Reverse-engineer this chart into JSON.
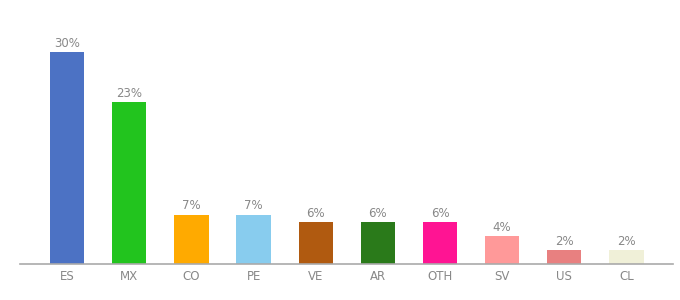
{
  "categories": [
    "ES",
    "MX",
    "CO",
    "PE",
    "VE",
    "AR",
    "OTH",
    "SV",
    "US",
    "CL"
  ],
  "values": [
    30,
    23,
    7,
    7,
    6,
    6,
    6,
    4,
    2,
    2
  ],
  "bar_colors": [
    "#4c72c4",
    "#22c41e",
    "#ffaa00",
    "#88ccee",
    "#b05a10",
    "#2a7a1a",
    "#ff1493",
    "#ff9999",
    "#e88080",
    "#f0f0d8"
  ],
  "background_color": "#ffffff",
  "ylim": [
    0,
    34
  ],
  "label_fontsize": 8.5,
  "tick_fontsize": 8.5,
  "label_color": "#888888",
  "tick_color": "#888888"
}
